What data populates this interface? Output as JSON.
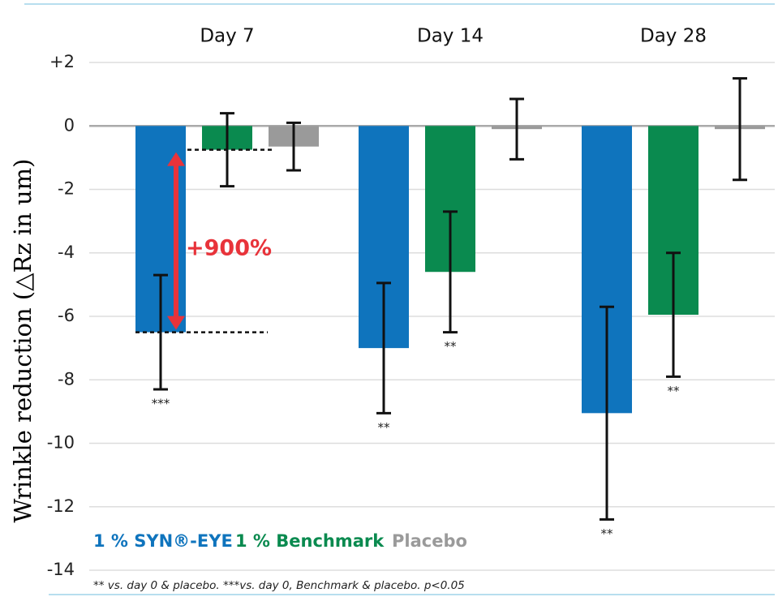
{
  "chart_data": {
    "type": "bar",
    "categories": [
      "Day 7",
      "Day 14",
      "Day 28"
    ],
    "y_label": "Wrinkle reduction (△Rz in um)",
    "series": [
      {
        "name": "1 % SYN®-EYE",
        "color": "#0f74bd",
        "values": [
          -6.5,
          -7.0,
          -9.05
        ],
        "errors": [
          1.8,
          2.05,
          3.35
        ],
        "significance": [
          "***",
          "**",
          "**"
        ]
      },
      {
        "name": "1 % Benchmark",
        "color": "#0a8a4f",
        "values": [
          -0.75,
          -4.6,
          -5.95
        ],
        "errors": [
          1.15,
          1.9,
          1.95
        ],
        "significance": [
          null,
          "**",
          "**"
        ]
      },
      {
        "name": "Placebo",
        "color": "#9a9a9a",
        "values": [
          -0.65,
          -0.1,
          -0.1
        ],
        "errors": [
          0.75,
          0.95,
          1.6
        ]
      }
    ],
    "ylim": [
      -14,
      2
    ],
    "yticks": [
      {
        "value": 2,
        "label": "+2"
      },
      0,
      -2,
      -4,
      -6,
      -8,
      -10,
      -12,
      -14
    ],
    "grid": true,
    "annotation": "+900%",
    "footnote": "** vs. day 0 & placebo.  ***vs. day 0, Benchmark & placebo.  p<0.05"
  }
}
